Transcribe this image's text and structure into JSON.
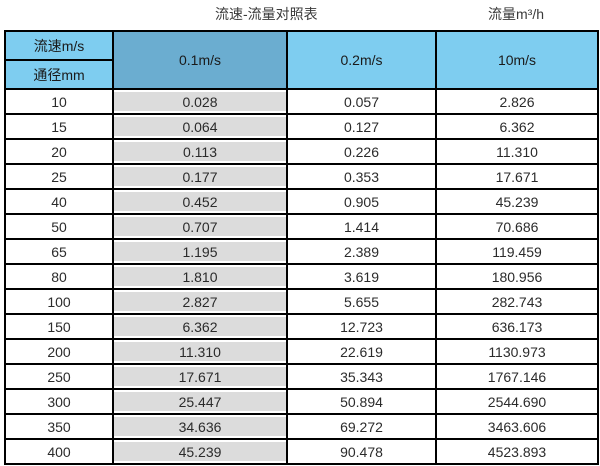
{
  "titles": {
    "main": "流速-流量对照表",
    "unit": "流量m³/h"
  },
  "colors": {
    "header_blue": "#7ecdf0",
    "header_blue_dark": "#6badd0",
    "gray_col": "#dcdcdc",
    "border": "#000000"
  },
  "chart_data": {
    "type": "table",
    "title": "流速-流量对照表",
    "value_unit": "流量m³/h",
    "corner_labels": [
      "流速m/s",
      "通径mm"
    ],
    "columns": [
      "0.1m/s",
      "0.2m/s",
      "10m/s"
    ],
    "rows": [
      {
        "diameter_mm": "10",
        "values": [
          "0.028",
          "0.057",
          "2.826"
        ]
      },
      {
        "diameter_mm": "15",
        "values": [
          "0.064",
          "0.127",
          "6.362"
        ]
      },
      {
        "diameter_mm": "20",
        "values": [
          "0.113",
          "0.226",
          "11.310"
        ]
      },
      {
        "diameter_mm": "25",
        "values": [
          "0.177",
          "0.353",
          "17.671"
        ]
      },
      {
        "diameter_mm": "40",
        "values": [
          "0.452",
          "0.905",
          "45.239"
        ]
      },
      {
        "diameter_mm": "50",
        "values": [
          "0.707",
          "1.414",
          "70.686"
        ]
      },
      {
        "diameter_mm": "65",
        "values": [
          "1.195",
          "2.389",
          "119.459"
        ]
      },
      {
        "diameter_mm": "80",
        "values": [
          "1.810",
          "3.619",
          "180.956"
        ]
      },
      {
        "diameter_mm": "100",
        "values": [
          "2.827",
          "5.655",
          "282.743"
        ]
      },
      {
        "diameter_mm": "150",
        "values": [
          "6.362",
          "12.723",
          "636.173"
        ]
      },
      {
        "diameter_mm": "200",
        "values": [
          "11.310",
          "22.619",
          "1130.973"
        ]
      },
      {
        "diameter_mm": "250",
        "values": [
          "17.671",
          "35.343",
          "1767.146"
        ]
      },
      {
        "diameter_mm": "300",
        "values": [
          "25.447",
          "50.894",
          "2544.690"
        ]
      },
      {
        "diameter_mm": "350",
        "values": [
          "34.636",
          "69.272",
          "3463.606"
        ]
      },
      {
        "diameter_mm": "400",
        "values": [
          "45.239",
          "90.478",
          "4523.893"
        ]
      }
    ]
  }
}
